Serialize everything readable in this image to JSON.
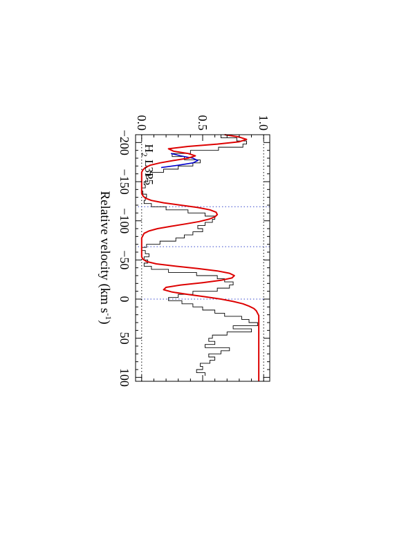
{
  "chart_data": {
    "type": "line",
    "orientation": "rotated 90 degrees clockwise",
    "xlabel": "Relative velocity (km s⁻¹)",
    "xlabel_main": "Relative velocity (km s",
    "xlabel_sup": "-1",
    "xlabel_close": ")",
    "ylabel": "",
    "xlim": [
      -210,
      105
    ],
    "ylim": [
      -0.05,
      1.05
    ],
    "x_ticks": [
      -200,
      -150,
      -100,
      -50,
      0,
      50,
      100
    ],
    "x_tick_labels": [
      "−200",
      "−150",
      "−100",
      "−50",
      "0",
      "50",
      "100"
    ],
    "y_ticks": [
      0.0,
      0.5,
      1.0
    ],
    "y_tick_labels": [
      "0.0",
      "0.5",
      "1.0"
    ],
    "reference_lines_y": [
      0.0,
      1.0
    ],
    "component_lines_x": [
      -118,
      -67,
      0
    ],
    "annotation": {
      "text": "H",
      "subscript": "2",
      "suffix": " L3P5",
      "x": -198,
      "y": 0.03
    },
    "series": [
      {
        "style": "histogram",
        "color": "#000000",
        "x": [
          -210,
          -206,
          -202,
          -198,
          -194,
          -190,
          -186,
          -182,
          -178,
          -174,
          -170,
          -166,
          -162,
          -158,
          -154,
          -150,
          -146,
          -142,
          -138,
          -134,
          -130,
          -126,
          -122,
          -118,
          -114,
          -110,
          -106,
          -102,
          -98,
          -94,
          -90,
          -86,
          -82,
          -78,
          -74,
          -70,
          -66,
          -62,
          -58,
          -54,
          -50,
          -46,
          -42,
          -38,
          -34,
          -30,
          -26,
          -22,
          -18,
          -14,
          -10,
          -6,
          -2,
          2,
          6,
          10,
          14,
          18,
          22,
          26,
          30,
          34,
          38,
          42,
          46,
          50,
          54,
          58,
          62,
          66,
          70,
          74,
          78,
          82,
          86,
          90,
          94
        ],
        "y": [
          0.65,
          0.78,
          0.86,
          0.83,
          0.63,
          0.4,
          0.25,
          0.35,
          0.48,
          0.42,
          0.3,
          0.18,
          0.07,
          0.04,
          0.05,
          0.02,
          0.03,
          0.0,
          0.01,
          0.04,
          0.03,
          0.02,
          0.08,
          0.2,
          0.38,
          0.52,
          0.6,
          0.58,
          0.52,
          0.46,
          0.5,
          0.42,
          0.35,
          0.28,
          0.15,
          0.04,
          0.0,
          0.03,
          0.06,
          0.02,
          0.05,
          0.02,
          0.08,
          0.22,
          0.45,
          0.62,
          0.68,
          0.75,
          0.72,
          0.62,
          0.42,
          0.3,
          0.22,
          0.33,
          0.42,
          0.5,
          0.6,
          0.68,
          0.82,
          0.88,
          0.95,
          0.75,
          0.9,
          0.7,
          0.58,
          0.55,
          0.6,
          0.52,
          0.72,
          0.65,
          0.55,
          0.6,
          0.56,
          0.48,
          0.5,
          0.45,
          0.52
        ]
      },
      {
        "style": "line",
        "color": "#0000cc",
        "x": [
          -186,
          -183,
          -180,
          -177,
          -174,
          -171,
          -168
        ],
        "y": [
          0.24,
          0.32,
          0.42,
          0.46,
          0.42,
          0.3,
          0.16
        ]
      },
      {
        "style": "line",
        "color": "#dd0000",
        "x": [
          -210,
          -207,
          -204,
          -201,
          -198,
          -195,
          -192,
          -189,
          -186,
          -183,
          -180,
          -177,
          -174,
          -171,
          -168,
          -165,
          -162,
          -159,
          -156,
          -153,
          -150,
          -147,
          -144,
          -141,
          -138,
          -135,
          -132,
          -129,
          -126,
          -123,
          -120,
          -117,
          -114,
          -111,
          -108,
          -105,
          -102,
          -99,
          -96,
          -93,
          -90,
          -87,
          -84,
          -81,
          -78,
          -75,
          -72,
          -69,
          -66,
          -63,
          -60,
          -57,
          -54,
          -51,
          -48,
          -45,
          -42,
          -39,
          -36,
          -33,
          -30,
          -27,
          -24,
          -21,
          -18,
          -15,
          -12,
          -9,
          -6,
          -3,
          0,
          3,
          6,
          9,
          12,
          15,
          18,
          21,
          24,
          27,
          30,
          33,
          36,
          39,
          42,
          45,
          48,
          51,
          54,
          57,
          60,
          63,
          66,
          69,
          72,
          75,
          78,
          81,
          84,
          87,
          90,
          93,
          96,
          99,
          102,
          105
        ],
        "y": [
          0.68,
          0.8,
          0.86,
          0.8,
          0.62,
          0.38,
          0.22,
          0.26,
          0.38,
          0.44,
          0.38,
          0.26,
          0.15,
          0.07,
          0.03,
          0.01,
          0.0,
          0.0,
          0.0,
          0.0,
          0.0,
          0.0,
          0.0,
          0.0,
          0.0,
          0.0,
          0.01,
          0.03,
          0.08,
          0.18,
          0.32,
          0.46,
          0.56,
          0.61,
          0.62,
          0.6,
          0.55,
          0.47,
          0.36,
          0.24,
          0.13,
          0.06,
          0.02,
          0.01,
          0.0,
          0.0,
          0.0,
          0.0,
          0.0,
          0.0,
          0.0,
          0.0,
          0.0,
          0.01,
          0.04,
          0.12,
          0.28,
          0.46,
          0.62,
          0.72,
          0.76,
          0.74,
          0.65,
          0.5,
          0.32,
          0.2,
          0.18,
          0.25,
          0.38,
          0.52,
          0.65,
          0.75,
          0.83,
          0.88,
          0.92,
          0.94,
          0.95,
          0.96,
          0.96,
          0.96,
          0.96,
          0.96,
          0.96,
          0.96,
          0.96,
          0.96,
          0.96,
          0.96,
          0.96,
          0.96,
          0.96,
          0.96,
          0.96,
          0.96,
          0.96,
          0.96,
          0.96,
          0.96,
          0.96,
          0.96,
          0.96,
          0.96,
          0.96,
          0.96,
          0.96,
          0.96
        ]
      }
    ]
  }
}
